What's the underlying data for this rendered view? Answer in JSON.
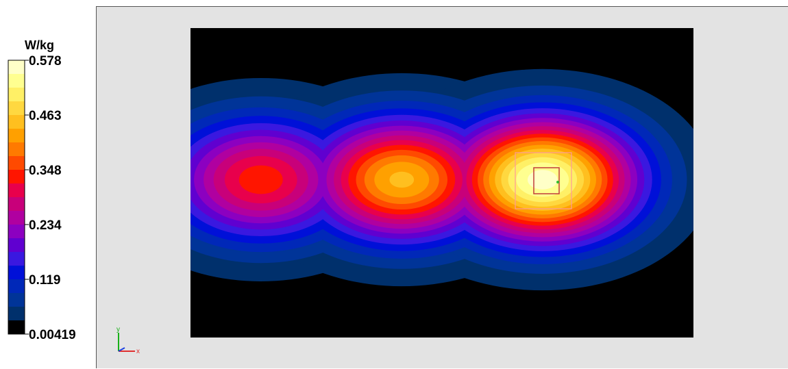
{
  "chart_data": {
    "type": "heatmap",
    "unit": "W/kg",
    "vmin": 0.00419,
    "vmax": 0.578,
    "colorbar_ticks": [
      "0.578",
      "0.463",
      "0.348",
      "0.234",
      "0.119",
      "0.00419"
    ],
    "colorbar_colors": [
      "#ffffc8",
      "#ffff90",
      "#fff066",
      "#ffd840",
      "#ffbf1f",
      "#ffa000",
      "#ff7a00",
      "#ff4a00",
      "#ff1500",
      "#e8004c",
      "#c8007a",
      "#b000a0",
      "#8c00c0",
      "#6000d0",
      "#3a18e0",
      "#0010d8",
      "#0028b8",
      "#003498",
      "#00306c",
      "#000000"
    ],
    "hotspots": [
      {
        "x": 0.14,
        "y": 0.49,
        "peak": 0.34
      },
      {
        "x": 0.42,
        "y": 0.49,
        "peak": 0.45
      },
      {
        "x": 0.7,
        "y": 0.49,
        "peak": 0.578
      }
    ],
    "axes": {
      "x_label": "x",
      "y_label": "y"
    }
  },
  "colors": {
    "viewport_bg": "#e3e3e3",
    "scan_bg": "#000000",
    "box_outer": "#ff9a9a",
    "box_inner": "#c03a3a"
  }
}
